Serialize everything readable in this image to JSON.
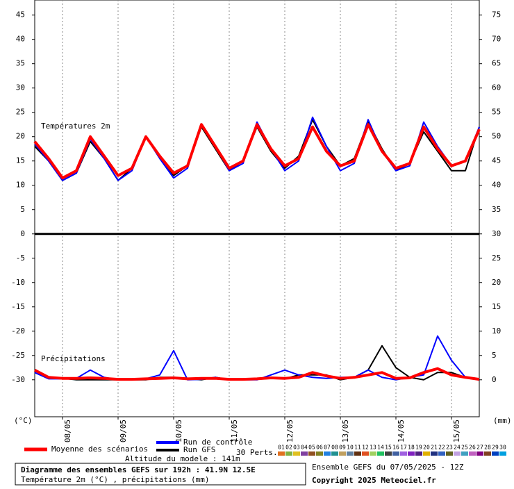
{
  "chart_data": {
    "type": "line",
    "panel_labels": [
      "Températures 2m",
      "Précipitations"
    ],
    "y_unit": "(°C)",
    "y2_unit": "(mm)",
    "x": [
      0,
      6,
      12,
      18,
      24,
      30,
      36,
      42,
      48,
      54,
      60,
      66,
      72,
      78,
      84,
      90,
      96,
      102,
      108,
      114,
      120,
      126,
      132,
      138,
      144,
      150,
      156,
      162,
      168,
      174,
      180,
      186,
      192
    ],
    "xlim": [
      0,
      192
    ],
    "xticks": [
      {
        "value": 12,
        "label": "08/05"
      },
      {
        "value": 36,
        "label": "09/05"
      },
      {
        "value": 60,
        "label": "10/05"
      },
      {
        "value": 84,
        "label": "11/05"
      },
      {
        "value": 108,
        "label": "12/05"
      },
      {
        "value": 132,
        "label": "13/05"
      },
      {
        "value": 156,
        "label": "14/05"
      },
      {
        "value": 180,
        "label": "15/05"
      }
    ],
    "xgrid": true,
    "ylim": [
      -37.6,
      48.1
    ],
    "yticks": [
      -30,
      -25,
      -20,
      -15,
      -10,
      -5,
      0,
      5,
      10,
      15,
      20,
      25,
      30,
      35,
      40,
      45
    ],
    "y2lim": [
      -7.6,
      78.1
    ],
    "y2ticks": [
      0,
      5,
      10,
      15,
      20,
      25,
      30,
      35,
      40,
      45,
      50,
      55,
      60,
      65,
      70,
      75
    ],
    "series": [
      {
        "name": "Run GFS",
        "color": "#000000",
        "values": [
          18,
          15,
          11,
          12.5,
          19,
          15.5,
          11,
          13.5,
          20,
          16,
          12,
          14,
          22,
          17.5,
          13,
          15,
          22,
          17,
          13.5,
          16,
          23.5,
          18,
          14,
          15.5,
          23,
          17.5,
          13,
          14.5,
          21,
          17,
          13,
          13,
          22
        ],
        "precip": [
          2,
          0.5,
          0.3,
          0,
          0,
          0,
          0,
          0,
          0,
          0.5,
          0.5,
          0.2,
          0,
          0.5,
          0,
          0,
          0.2,
          0.5,
          0.2,
          1,
          1,
          1,
          0,
          0.5,
          2,
          7,
          2.5,
          0.5,
          0,
          1.5,
          1.5,
          0.5,
          0
        ]
      },
      {
        "name": "Run de contrôle",
        "color": "#0000ff",
        "values": [
          18.5,
          15,
          11,
          12.5,
          19.5,
          15.5,
          11,
          13,
          20,
          15.5,
          11.5,
          13.5,
          22.5,
          18,
          13,
          14.5,
          23,
          17.5,
          13,
          15,
          24,
          18,
          13,
          14.5,
          23.5,
          17,
          13,
          14,
          23,
          18,
          14,
          15,
          22
        ],
        "precip": [
          1.5,
          0.2,
          0.2,
          0.3,
          2,
          0.5,
          0,
          0,
          0.2,
          1,
          6,
          0,
          0.1,
          0.5,
          0,
          0,
          0,
          1,
          2,
          1,
          0.5,
          0.3,
          0.5,
          0.5,
          2,
          0.5,
          0,
          0.5,
          1,
          9,
          4,
          0.5,
          0
        ]
      },
      {
        "name": "Moyenne des scénarios",
        "color": "#ff0000",
        "values": [
          19,
          15.5,
          11.5,
          13,
          20,
          16,
          12,
          13.5,
          20,
          16,
          12.5,
          14,
          22.5,
          18,
          13.5,
          15,
          22.5,
          17.5,
          14,
          15.5,
          22,
          17,
          14,
          15,
          22.5,
          17,
          13.5,
          14.5,
          22,
          17.5,
          14,
          15,
          21.5
        ],
        "precip": [
          2,
          0.5,
          0.3,
          0.3,
          0.4,
          0.3,
          0.1,
          0.1,
          0.2,
          0.3,
          0.4,
          0.2,
          0.3,
          0.3,
          0.1,
          0.1,
          0.2,
          0.4,
          0.3,
          0.5,
          1.5,
          0.8,
          0.3,
          0.5,
          1,
          1.5,
          0.3,
          0.4,
          1.5,
          2.3,
          1,
          0.5,
          0.1
        ]
      }
    ],
    "perturbations": {
      "label": "30 Perts.",
      "members": [
        {
          "name": "01",
          "color": "#e07020"
        },
        {
          "name": "02",
          "color": "#80b040"
        },
        {
          "name": "03",
          "color": "#e0c020"
        },
        {
          "name": "04",
          "color": "#8040a0"
        },
        {
          "name": "05",
          "color": "#905020"
        },
        {
          "name": "06",
          "color": "#808020"
        },
        {
          "name": "07",
          "color": "#2080e0"
        },
        {
          "name": "08",
          "color": "#209090"
        },
        {
          "name": "09",
          "color": "#c0a060"
        },
        {
          "name": "10",
          "color": "#6080a0"
        },
        {
          "name": "11",
          "color": "#603010"
        },
        {
          "name": "12",
          "color": "#e05020"
        },
        {
          "name": "13",
          "color": "#a0d060"
        },
        {
          "name": "14",
          "color": "#20c060"
        },
        {
          "name": "15",
          "color": "#404040"
        },
        {
          "name": "16",
          "color": "#4060a0"
        },
        {
          "name": "17",
          "color": "#a060e0"
        },
        {
          "name": "18",
          "color": "#8020c0"
        },
        {
          "name": "19",
          "color": "#502080"
        },
        {
          "name": "20",
          "color": "#e0b000"
        },
        {
          "name": "21",
          "color": "#203080"
        },
        {
          "name": "22",
          "color": "#3060c0"
        },
        {
          "name": "23",
          "color": "#606020"
        },
        {
          "name": "24",
          "color": "#c0a0e0"
        },
        {
          "name": "25",
          "color": "#40a0c0"
        },
        {
          "name": "26",
          "color": "#c060c0"
        },
        {
          "name": "27",
          "color": "#800080"
        },
        {
          "name": "28",
          "color": "#804020"
        },
        {
          "name": "29",
          "color": "#0040c0"
        },
        {
          "name": "30",
          "color": "#00a0e0"
        }
      ]
    },
    "altitude": "Altitude du modele : 141m",
    "title": "Diagramme des ensembles GEFS sur 192h : 41.9N 12.5E",
    "subtitle": "Température 2m (°C) , précipitations (mm)",
    "run_info": "Ensemble GEFS du 07/05/2025 - 12Z",
    "copyright": "Copyright 2025 Meteociel.fr"
  }
}
